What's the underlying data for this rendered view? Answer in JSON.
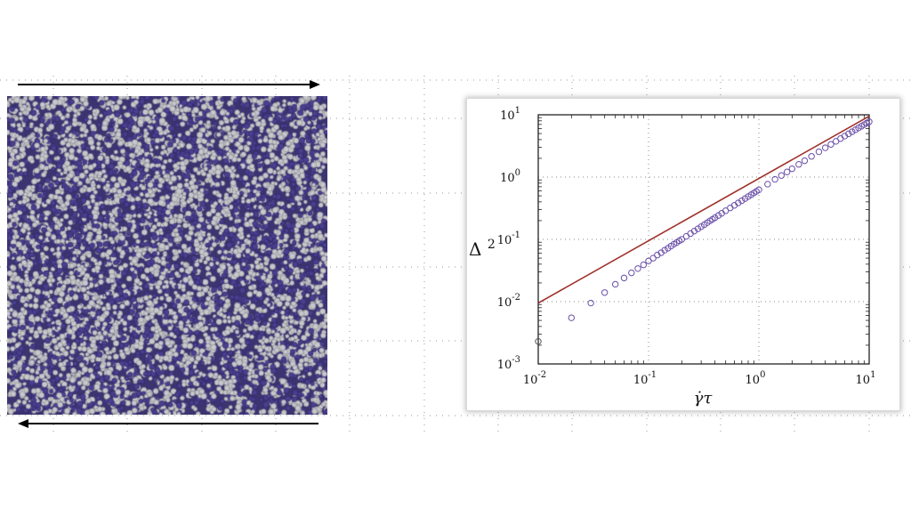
{
  "colors": {
    "particle_blue": "#4a3f8f",
    "particle_gray": "#c8c8cc",
    "fit_line": "#a0302a",
    "data_marker": "#6a4fa8",
    "first_marker": "#555555"
  },
  "simulation": {
    "description_icon": "particle-snapshot",
    "top_arrow_icon": "right-arrow-icon",
    "bottom_arrow_icon": "left-arrow-icon"
  },
  "chart_data": {
    "type": "scatter",
    "xscale": "log",
    "yscale": "log",
    "xlim": [
      0.01,
      10
    ],
    "ylim": [
      0.001,
      10
    ],
    "xticks": [
      {
        "base": "10",
        "exp": "-2",
        "value": 0.01
      },
      {
        "base": "10",
        "exp": "-1",
        "value": 0.1
      },
      {
        "base": "10",
        "exp": "0",
        "value": 1
      },
      {
        "base": "10",
        "exp": "1",
        "value": 10
      }
    ],
    "yticks": [
      {
        "base": "10",
        "exp": "-3",
        "value": 0.001
      },
      {
        "base": "10",
        "exp": "-2",
        "value": 0.01
      },
      {
        "base": "10",
        "exp": "-1",
        "value": 0.1
      },
      {
        "base": "10",
        "exp": "0",
        "value": 1
      },
      {
        "base": "10",
        "exp": "1",
        "value": 10
      }
    ],
    "xlabel": "γ̇τ",
    "ylabel_base": "Δ",
    "ylabel_exp": "2",
    "series": [
      {
        "style": "open-circles",
        "x": [
          0.01,
          0.02,
          0.03,
          0.04,
          0.05,
          0.06,
          0.07,
          0.08,
          0.09,
          0.1,
          0.11,
          0.12,
          0.13,
          0.14,
          0.15,
          0.16,
          0.17,
          0.18,
          0.19,
          0.2,
          0.22,
          0.24,
          0.26,
          0.28,
          0.3,
          0.32,
          0.34,
          0.36,
          0.38,
          0.4,
          0.43,
          0.46,
          0.5,
          0.55,
          0.6,
          0.65,
          0.7,
          0.75,
          0.8,
          0.85,
          0.9,
          0.95,
          1.0,
          1.2,
          1.4,
          1.6,
          1.8,
          2.0,
          2.3,
          2.6,
          3.0,
          3.5,
          4.0,
          4.5,
          5.0,
          5.5,
          6.0,
          6.5,
          7.0,
          7.5,
          8.0,
          8.5,
          9.0,
          9.5,
          10.0
        ],
        "y": [
          0.0023,
          0.0055,
          0.0095,
          0.014,
          0.019,
          0.024,
          0.029,
          0.034,
          0.039,
          0.045,
          0.05,
          0.056,
          0.061,
          0.067,
          0.072,
          0.078,
          0.084,
          0.089,
          0.095,
          0.1,
          0.112,
          0.124,
          0.136,
          0.148,
          0.16,
          0.172,
          0.185,
          0.198,
          0.21,
          0.223,
          0.242,
          0.262,
          0.288,
          0.32,
          0.352,
          0.385,
          0.418,
          0.452,
          0.486,
          0.52,
          0.555,
          0.59,
          0.625,
          0.77,
          0.92,
          1.06,
          1.21,
          1.36,
          1.6,
          1.83,
          2.15,
          2.55,
          2.95,
          3.35,
          3.75,
          4.15,
          4.55,
          4.95,
          5.35,
          5.75,
          6.15,
          6.55,
          6.95,
          7.35,
          7.75
        ]
      },
      {
        "style": "line",
        "x": [
          0.01,
          10
        ],
        "y": [
          0.0095,
          9.5
        ]
      }
    ]
  }
}
